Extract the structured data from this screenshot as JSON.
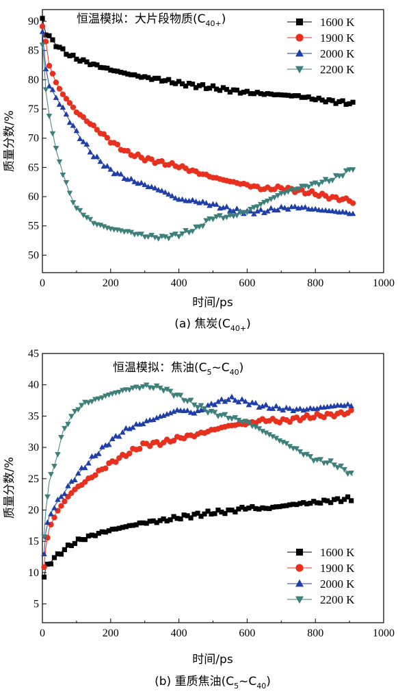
{
  "chart_data": [
    {
      "type": "scatter",
      "panel": "a",
      "title_main": "恒温模拟：大片段物质(C",
      "title_sub": "40+",
      "title_end": ")",
      "caption_main": "(a) 焦炭(C",
      "caption_sub": "40+",
      "caption_end": ")",
      "xlabel": "时间/ps",
      "ylabel": "质量分数/%",
      "xlim": [
        0,
        1000
      ],
      "ylim": [
        47,
        92
      ],
      "xticks": [
        0,
        200,
        400,
        600,
        800,
        1000
      ],
      "yticks": [
        50,
        55,
        60,
        65,
        70,
        75,
        80,
        85,
        90
      ],
      "legend_position": "top-right",
      "series": [
        {
          "name": "1600 K",
          "color": "#000000",
          "marker": "square",
          "x": [
            0,
            5,
            10,
            20,
            40,
            60,
            80,
            100,
            150,
            200,
            250,
            300,
            350,
            400,
            450,
            500,
            550,
            600,
            650,
            700,
            750,
            800,
            850,
            900,
            910
          ],
          "y": [
            90.5,
            89.0,
            88.0,
            87.3,
            86.0,
            85.0,
            84.2,
            83.6,
            82.6,
            81.7,
            81.0,
            80.4,
            80.0,
            79.4,
            79.0,
            78.6,
            78.2,
            77.8,
            77.6,
            77.4,
            77.2,
            76.7,
            76.3,
            76.0,
            75.8
          ]
        },
        {
          "name": "1900 K",
          "color": "#e8301f",
          "marker": "circle",
          "x": [
            0,
            5,
            10,
            20,
            40,
            60,
            80,
            100,
            150,
            200,
            250,
            300,
            350,
            400,
            450,
            500,
            550,
            600,
            650,
            700,
            750,
            800,
            850,
            900,
            910
          ],
          "y": [
            89.0,
            88.0,
            86.5,
            82.5,
            79.5,
            77.5,
            76.0,
            74.5,
            72.0,
            69.5,
            67.5,
            66.5,
            65.8,
            65.2,
            64.2,
            63.3,
            62.6,
            62.0,
            61.3,
            61.5,
            61.0,
            60.5,
            59.8,
            59.4,
            59.0
          ]
        },
        {
          "name": "2000 K",
          "color": "#1f3ea8",
          "marker": "triangle-up",
          "x": [
            0,
            5,
            10,
            20,
            40,
            60,
            80,
            100,
            150,
            200,
            250,
            300,
            350,
            400,
            450,
            500,
            550,
            600,
            650,
            700,
            750,
            800,
            850,
            900,
            910
          ],
          "y": [
            88.0,
            85.0,
            82.0,
            79.0,
            77.0,
            75.0,
            73.0,
            71.0,
            67.0,
            64.5,
            63.0,
            62.0,
            61.0,
            59.5,
            59.2,
            58.6,
            57.8,
            57.3,
            57.5,
            58.0,
            58.2,
            57.8,
            57.5,
            57.2,
            57.0
          ]
        },
        {
          "name": "2200 K",
          "color": "#3d7f7a",
          "marker": "triangle-down",
          "x": [
            0,
            5,
            10,
            20,
            40,
            60,
            80,
            100,
            150,
            200,
            250,
            300,
            350,
            400,
            450,
            500,
            550,
            600,
            650,
            700,
            750,
            800,
            850,
            900,
            910
          ],
          "y": [
            86.0,
            83.0,
            78.0,
            74.0,
            68.0,
            64.0,
            60.5,
            58.0,
            55.5,
            54.5,
            54.0,
            53.3,
            53.0,
            53.5,
            54.5,
            56.5,
            56.6,
            57.5,
            59.0,
            60.5,
            61.5,
            62.2,
            63.0,
            64.5,
            65.0
          ]
        }
      ]
    },
    {
      "type": "scatter",
      "panel": "b",
      "title_main": "恒温模拟：焦油(C",
      "title_sub": "5",
      "title_mid": "~C",
      "title_sub2": "40",
      "title_end": ")",
      "caption_main": "(b) 重质焦油(C",
      "caption_sub": "5",
      "caption_mid": "~C",
      "caption_sub2": "40",
      "caption_end": ")",
      "xlabel": "时间/ps",
      "ylabel": "质量分数/%",
      "xlim": [
        0,
        1000
      ],
      "ylim": [
        2,
        45
      ],
      "xticks": [
        0,
        200,
        400,
        600,
        800,
        1000
      ],
      "yticks": [
        5,
        10,
        15,
        20,
        25,
        30,
        35,
        40,
        45
      ],
      "legend_position": "bottom-right",
      "series": [
        {
          "name": "1600 K",
          "color": "#000000",
          "marker": "square",
          "x": [
            5,
            10,
            20,
            40,
            60,
            80,
            100,
            150,
            200,
            250,
            300,
            350,
            400,
            450,
            500,
            550,
            600,
            650,
            700,
            750,
            800,
            850,
            900,
            910
          ],
          "y": [
            9.0,
            11.0,
            11.5,
            12.5,
            13.5,
            14.3,
            15.0,
            16.0,
            16.8,
            17.4,
            18.0,
            18.3,
            18.8,
            19.2,
            19.6,
            19.8,
            20.4,
            20.2,
            20.6,
            21.0,
            21.2,
            21.5,
            21.8,
            21.6
          ]
        },
        {
          "name": "1900 K",
          "color": "#e8301f",
          "marker": "circle",
          "x": [
            5,
            10,
            20,
            40,
            60,
            80,
            100,
            150,
            200,
            250,
            300,
            350,
            400,
            450,
            500,
            550,
            600,
            650,
            700,
            750,
            800,
            850,
            900,
            910
          ],
          "y": [
            11.0,
            14.0,
            17.0,
            19.5,
            21.0,
            22.5,
            23.5,
            25.5,
            27.5,
            29.0,
            30.5,
            30.7,
            31.5,
            32.0,
            32.8,
            33.5,
            33.8,
            34.4,
            34.2,
            34.6,
            35.0,
            35.2,
            35.6,
            35.8
          ]
        },
        {
          "name": "2000 K",
          "color": "#1f3ea8",
          "marker": "triangle-up",
          "x": [
            5,
            10,
            20,
            40,
            60,
            80,
            100,
            150,
            200,
            250,
            300,
            350,
            400,
            450,
            500,
            550,
            600,
            650,
            700,
            750,
            800,
            850,
            900,
            910
          ],
          "y": [
            13.0,
            16.5,
            19.0,
            21.0,
            22.5,
            24.0,
            25.5,
            28.5,
            31.0,
            33.0,
            34.0,
            35.0,
            36.0,
            35.5,
            37.0,
            37.8,
            37.2,
            36.5,
            36.2,
            36.0,
            36.2,
            36.6,
            36.8,
            36.3
          ]
        },
        {
          "name": "2200 K",
          "color": "#3d7f7a",
          "marker": "triangle-down",
          "x": [
            5,
            10,
            20,
            40,
            60,
            80,
            100,
            120,
            150,
            200,
            250,
            300,
            350,
            400,
            450,
            500,
            550,
            600,
            650,
            700,
            750,
            800,
            850,
            900,
            910
          ],
          "y": [
            16.0,
            20.0,
            24.5,
            28.0,
            32.5,
            34.5,
            36.0,
            37.0,
            37.5,
            38.5,
            39.3,
            39.8,
            39.5,
            38.2,
            36.8,
            35.5,
            34.8,
            34.0,
            32.5,
            31.0,
            29.5,
            28.0,
            27.5,
            26.0,
            25.5
          ]
        }
      ]
    }
  ]
}
